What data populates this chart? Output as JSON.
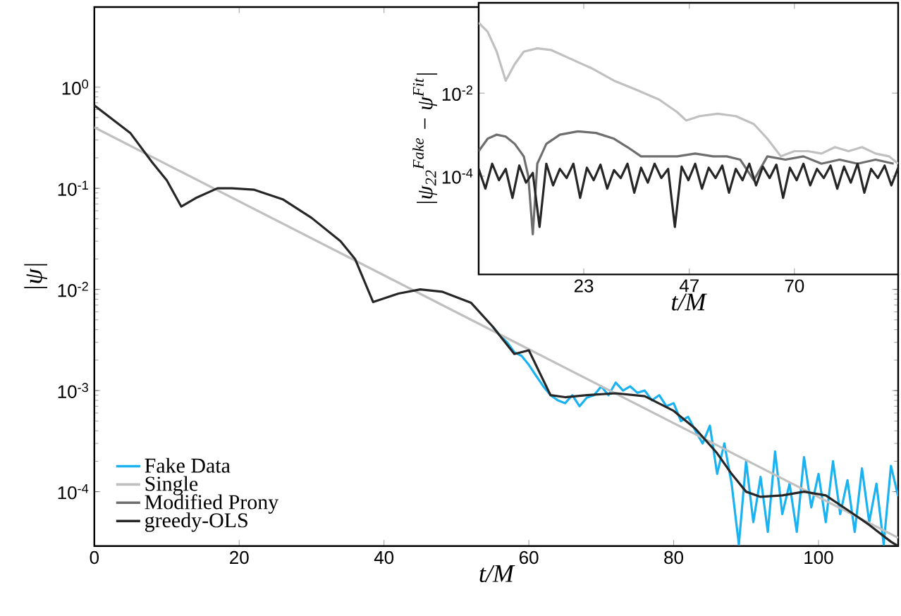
{
  "chart_data": [
    {
      "type": "line",
      "xlabel": "t/M",
      "ylabel": "|ψ|",
      "xlim": [
        0,
        111
      ],
      "ylim": [
        2.9e-05,
        6.2
      ],
      "log": "y",
      "legend": "bottom left",
      "xticks": [
        0,
        20,
        40,
        60,
        80,
        100
      ],
      "yticks": [
        {
          "value": 0.0001,
          "label": "10$^{-4}$"
        },
        {
          "value": 0.001,
          "label": "10$^{-3}$"
        },
        {
          "value": 0.01,
          "label": "10$^{-2}$"
        },
        {
          "value": 0.1,
          "label": "10$^{-1}$"
        },
        {
          "value": 1,
          "label": "10$^{0}$"
        }
      ],
      "series": [
        {
          "name": "Fake Data",
          "color": "#1ab2f0",
          "x": [
            55,
            56,
            57,
            58,
            59,
            60,
            61,
            62,
            63,
            64,
            65,
            66,
            67,
            68,
            69,
            70,
            71,
            72,
            73,
            74,
            75,
            76,
            77,
            78,
            79,
            80,
            81,
            82,
            83,
            84,
            85,
            86,
            87,
            88,
            89,
            90,
            91,
            92,
            93,
            94,
            95,
            96,
            97,
            98,
            99,
            100,
            101,
            102,
            103,
            104,
            105,
            106,
            107,
            108,
            109,
            110,
            111
          ],
          "values": [
            0.0043,
            0.0035,
            0.003,
            0.0024,
            0.0022,
            0.0018,
            0.0014,
            0.0011,
            0.0009,
            0.0008,
            0.00075,
            0.0009,
            0.0007,
            0.00085,
            0.0009,
            0.0011,
            0.0009,
            0.0012,
            0.001,
            0.0011,
            0.00095,
            0.001,
            0.0008,
            0.0009,
            0.0007,
            0.00075,
            0.0005,
            0.00055,
            0.0004,
            0.0003,
            0.00045,
            0.00015,
            0.0003,
            0.00012,
            3e-05,
            0.0002,
            5e-05,
            0.00014,
            4e-05,
            0.00025,
            6e-05,
            0.00012,
            4e-05,
            0.00022,
            7e-05,
            0.00015,
            5e-05,
            0.0002,
            6e-05,
            0.00013,
            4e-05,
            0.00017,
            5e-05,
            0.00012,
            3e-05,
            0.00018,
            9e-05
          ]
        },
        {
          "name": "Single",
          "color": "#c0c0c0",
          "x": [
            0,
            111
          ],
          "values": [
            0.4,
            3.5e-05
          ]
        },
        {
          "name": "Modified Prony",
          "color": "#6e6e6e"
        },
        {
          "name": "greedy-OLS",
          "color": "#262626",
          "x": [
            0,
            5,
            8,
            10,
            12,
            14,
            17,
            19,
            22,
            26,
            30,
            34,
            36,
            38.5,
            42,
            45,
            48,
            52,
            55,
            58,
            60,
            63,
            65,
            68,
            72,
            76,
            80,
            83,
            86,
            88,
            90,
            92,
            95,
            98,
            101,
            104,
            107,
            110,
            111
          ],
          "values": [
            0.66,
            0.35,
            0.18,
            0.12,
            0.066,
            0.08,
            0.1,
            0.1,
            0.097,
            0.078,
            0.051,
            0.03,
            0.02,
            0.0075,
            0.0091,
            0.01,
            0.0095,
            0.0074,
            0.0043,
            0.0023,
            0.0025,
            0.0009,
            0.00086,
            0.0009,
            0.00094,
            0.00088,
            0.00063,
            0.00042,
            0.00024,
            0.00015,
            0.0001,
            8.9e-05,
            9.2e-05,
            0.0001,
            9.2e-05,
            6.6e-05,
            4.7e-05,
            3.2e-05,
            2.9e-05
          ]
        }
      ]
    },
    {
      "type": "line",
      "xlabel": "t/M",
      "ylabel": "|ψ$_{22}$$^{Fake}$ − ψ$^{Fit}$|",
      "xlim": [
        0,
        93
      ],
      "ylim": [
        4.3e-07,
        1.5
      ],
      "log": "y",
      "xticks": [
        {
          "value": 23.3,
          "label": "23"
        },
        {
          "value": 46.7,
          "label": "47"
        },
        70
      ],
      "yticks": [
        {
          "value": 0.0001,
          "label": "10$^{-4}$"
        },
        {
          "value": 0.01,
          "label": "10$^{-2}$"
        }
      ],
      "series": [
        {
          "color": "#c0c0c0",
          "x": [
            0,
            2,
            4,
            6,
            8,
            10,
            13,
            16,
            20,
            25,
            30,
            35,
            40,
            44,
            46,
            49,
            53,
            57,
            61,
            64,
            67,
            70,
            73,
            76,
            79,
            82,
            85,
            88,
            91,
            93
          ],
          "values": [
            0.5,
            0.3,
            0.1,
            0.02,
            0.05,
            0.1,
            0.12,
            0.11,
            0.07,
            0.04,
            0.02,
            0.012,
            0.007,
            0.0035,
            0.0022,
            0.0028,
            0.0032,
            0.0028,
            0.0018,
            0.0008,
            0.0003,
            0.0004,
            0.0004,
            0.00035,
            0.0005,
            0.0004,
            0.0005,
            0.00035,
            0.0003,
            0.0002
          ]
        },
        {
          "color": "#6e6e6e",
          "x": [
            0,
            2,
            4,
            6,
            8,
            10,
            11,
            12,
            13,
            15,
            18,
            22,
            26,
            30,
            33,
            36,
            40,
            44,
            48,
            52,
            55,
            58,
            61,
            64,
            68,
            72,
            76,
            80,
            84,
            88,
            92
          ],
          "values": [
            0.0004,
            0.0008,
            0.001,
            0.0009,
            0.0006,
            0.0003,
            0.0001,
            4e-06,
            0.0002,
            0.0006,
            0.001,
            0.0012,
            0.0011,
            0.0008,
            0.0005,
            0.0003,
            0.0003,
            0.0003,
            0.00035,
            0.0003,
            0.0003,
            0.00025,
            8e-05,
            0.0003,
            0.00025,
            0.0003,
            0.0002,
            0.00025,
            0.0002,
            0.00025,
            0.0002
          ]
        },
        {
          "color": "#262626",
          "x": [
            0,
            1.5,
            3,
            4.5,
            6,
            7.5,
            9,
            10.5,
            12,
            13.5,
            15,
            16.5,
            18,
            19.5,
            21,
            22.5,
            24,
            25.5,
            27,
            28.5,
            30,
            31.5,
            33,
            34.5,
            36,
            37.5,
            39,
            40.5,
            42,
            43.5,
            45,
            46.5,
            48,
            49.5,
            51,
            52.5,
            54,
            55.5,
            57,
            58.5,
            60,
            61.5,
            63,
            64.5,
            66,
            67.5,
            69,
            70.5,
            72,
            73.5,
            75,
            76.5,
            78,
            79.5,
            81,
            82.5,
            84,
            85.5,
            87,
            88.5,
            90,
            91.5,
            93
          ],
          "values": [
            0.00015,
            5e-05,
            0.0002,
            8e-05,
            0.00015,
            3e-05,
            0.00018,
            7e-05,
            0.00012,
            6e-06,
            0.0002,
            6e-05,
            0.00015,
            9e-05,
            0.0002,
            3e-05,
            0.00016,
            8e-05,
            0.00019,
            5e-05,
            0.00014,
            9e-05,
            0.0002,
            4e-05,
            0.00016,
            7e-05,
            0.0002,
            9e-05,
            0.00015,
            6e-06,
            0.00017,
            8e-05,
            0.0002,
            5e-05,
            0.00016,
            9e-05,
            0.00018,
            4e-05,
            0.00015,
            8e-05,
            0.0002,
            6e-05,
            0.00017,
            9e-05,
            0.00019,
            3e-05,
            0.00016,
            8e-05,
            0.0002,
            6e-05,
            0.00015,
            9e-05,
            0.00018,
            5e-05,
            0.00017,
            7e-05,
            0.0002,
            4e-05,
            0.00015,
            9e-05,
            0.00018,
            6e-05,
            0.00016
          ]
        }
      ]
    }
  ]
}
